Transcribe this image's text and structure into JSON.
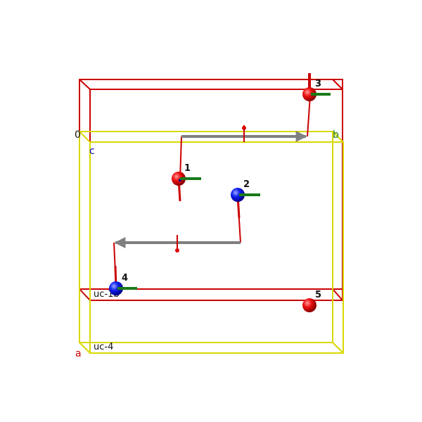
{
  "axes": {
    "a": "a",
    "b": "b",
    "c": "c",
    "origin": "0"
  },
  "cells": {
    "left_upper": "uc-1b",
    "left_lower": "uc-4"
  },
  "atoms": [
    {
      "label": "1",
      "color": "#dd0000"
    },
    {
      "label": "2",
      "color": "#0000dd"
    },
    {
      "label": "3",
      "color": "#dd0000"
    },
    {
      "label": "4",
      "color": "#0000dd"
    },
    {
      "label": "5",
      "color": "#dd0000"
    }
  ],
  "colors": {
    "red_cell": "#cc0000",
    "yellow_cell": "#d8d800",
    "arrow": "#808080",
    "spin_x": "#cc0000",
    "spin_y": "#1a7a1a"
  }
}
